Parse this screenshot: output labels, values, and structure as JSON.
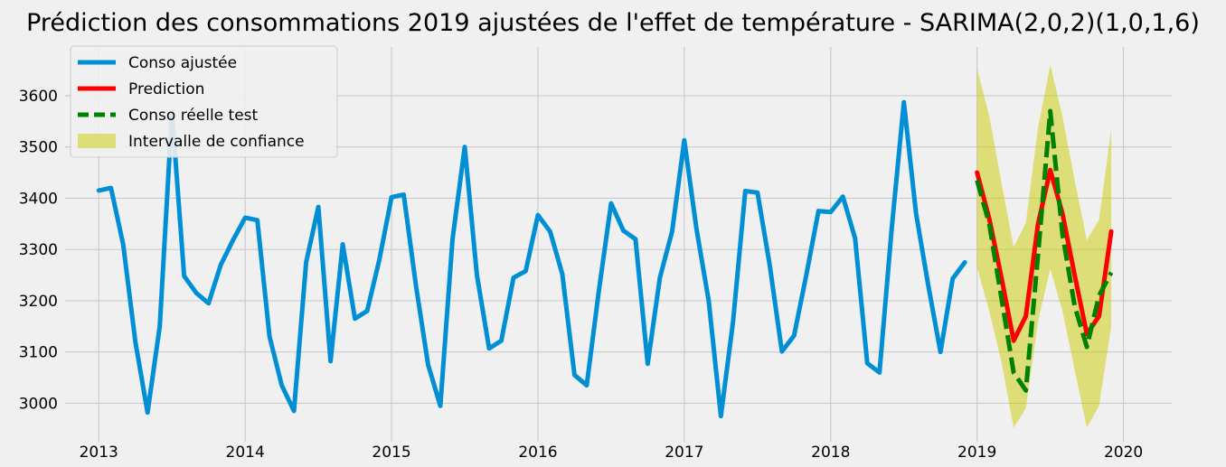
{
  "chart_data": {
    "type": "line",
    "title": "Prédiction des consommations 2019 ajustées de l'effet de température - SARIMA(2,0,2)(1,0,1,6)",
    "xlabel": "",
    "ylabel": "",
    "xlim": [
      2012.77,
      2020.33
    ],
    "ylim": [
      2925,
      3695
    ],
    "xticks": [
      "2013",
      "2014",
      "2015",
      "2016",
      "2017",
      "2018",
      "2019",
      "2020"
    ],
    "yticks": [
      "3000",
      "3100",
      "3200",
      "3300",
      "3400",
      "3500",
      "3600"
    ],
    "grid": true,
    "legend_position": "top-left",
    "series": [
      {
        "name": "Conso ajustée",
        "color": "#008fd5",
        "style": "solid",
        "x": [
          "2013-01",
          "2013-02",
          "2013-03",
          "2013-04",
          "2013-05",
          "2013-06",
          "2013-07",
          "2013-08",
          "2013-09",
          "2013-10",
          "2013-11",
          "2013-12",
          "2014-01",
          "2014-02",
          "2014-03",
          "2014-04",
          "2014-05",
          "2014-06",
          "2014-07",
          "2014-08",
          "2014-09",
          "2014-10",
          "2014-11",
          "2014-12",
          "2015-01",
          "2015-02",
          "2015-03",
          "2015-04",
          "2015-05",
          "2015-06",
          "2015-07",
          "2015-08",
          "2015-09",
          "2015-10",
          "2015-11",
          "2015-12",
          "2016-01",
          "2016-02",
          "2016-03",
          "2016-04",
          "2016-05",
          "2016-06",
          "2016-07",
          "2016-08",
          "2016-09",
          "2016-10",
          "2016-11",
          "2016-12",
          "2017-01",
          "2017-02",
          "2017-03",
          "2017-04",
          "2017-05",
          "2017-06",
          "2017-07",
          "2017-08",
          "2017-09",
          "2017-10",
          "2017-11",
          "2017-12",
          "2018-01",
          "2018-02",
          "2018-03",
          "2018-04",
          "2018-05",
          "2018-06",
          "2018-07",
          "2018-08",
          "2018-09",
          "2018-10",
          "2018-11",
          "2018-12"
        ],
        "values": [
          3415,
          3420,
          3310,
          3120,
          2982,
          3150,
          3568,
          3248,
          3215,
          3195,
          3270,
          3318,
          3362,
          3357,
          3130,
          3035,
          2985,
          3275,
          3383,
          3082,
          3310,
          3165,
          3180,
          3280,
          3402,
          3407,
          3230,
          3075,
          2995,
          3320,
          3500,
          3250,
          3107,
          3122,
          3245,
          3258,
          3367,
          3335,
          3252,
          3055,
          3035,
          3220,
          3390,
          3337,
          3320,
          3077,
          3245,
          3335,
          3513,
          3340,
          3200,
          2975,
          3160,
          3414,
          3411,
          3270,
          3101,
          3132,
          3250,
          3375,
          3373,
          3403,
          3322,
          3078,
          3060,
          3340,
          3587,
          3370,
          3230,
          3100,
          3243,
          3275
        ]
      },
      {
        "name": "Prediction",
        "color": "#fc0000",
        "style": "solid",
        "x": [
          "2019-01",
          "2019-02",
          "2019-03",
          "2019-04",
          "2019-05",
          "2019-06",
          "2019-07",
          "2019-08",
          "2019-09",
          "2019-10",
          "2019-11",
          "2019-12"
        ],
        "values": [
          3450,
          3360,
          3245,
          3122,
          3170,
          3350,
          3455,
          3370,
          3250,
          3135,
          3170,
          3335
        ]
      },
      {
        "name": "Conso réelle test",
        "color": "#008000",
        "style": "dashed",
        "x": [
          "2019-01",
          "2019-02",
          "2019-03",
          "2019-04",
          "2019-05",
          "2019-06",
          "2019-07",
          "2019-08",
          "2019-09",
          "2019-10",
          "2019-11",
          "2019-12"
        ],
        "values": [
          3435,
          3350,
          3205,
          3060,
          3025,
          3290,
          3570,
          3330,
          3190,
          3110,
          3210,
          3255
        ]
      }
    ],
    "interval": {
      "name": "Intervalle de confiance",
      "color": "#cccc00",
      "x": [
        "2019-01",
        "2019-02",
        "2019-03",
        "2019-04",
        "2019-05",
        "2019-06",
        "2019-07",
        "2019-08",
        "2019-09",
        "2019-10",
        "2019-11",
        "2019-12"
      ],
      "lower": [
        3265,
        3180,
        3080,
        2952,
        2990,
        3160,
        3262,
        3180,
        3065,
        2952,
        2995,
        3150
      ],
      "upper": [
        3653,
        3560,
        3430,
        3305,
        3352,
        3538,
        3660,
        3560,
        3435,
        3318,
        3358,
        3535
      ]
    }
  }
}
